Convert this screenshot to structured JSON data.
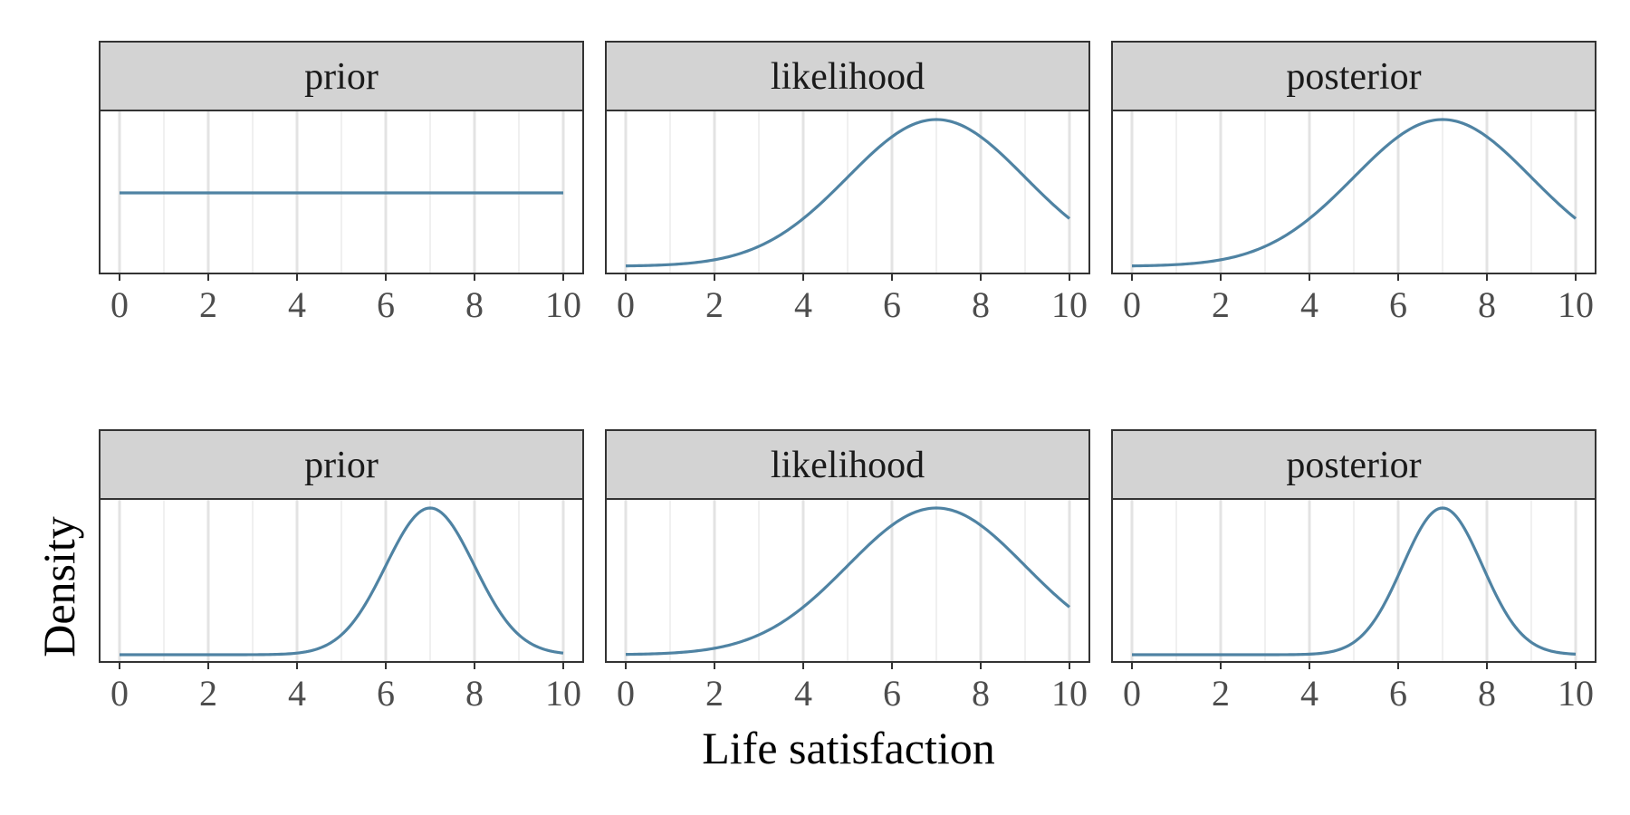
{
  "chart_data": {
    "type": "line",
    "xlabel": "Life satisfaction",
    "ylabel": "Density",
    "xlim": [
      0,
      10
    ],
    "x_ticks": [
      0,
      2,
      4,
      6,
      8,
      10
    ],
    "grid": "vertical",
    "line_color": "#4f83a3",
    "strip_color": "#d3d3d3",
    "rows": [
      {
        "panels": [
          {
            "title": "prior",
            "distribution": "uniform",
            "mean": null,
            "sd": null,
            "relative_height": 0.5
          },
          {
            "title": "likelihood",
            "distribution": "normal",
            "mean": 7,
            "sd": 2,
            "relative_height": 1.0
          },
          {
            "title": "posterior",
            "distribution": "normal",
            "mean": 7,
            "sd": 2,
            "relative_height": 1.0
          }
        ]
      },
      {
        "panels": [
          {
            "title": "prior",
            "distribution": "normal",
            "mean": 7,
            "sd": 1,
            "relative_height": 1.0
          },
          {
            "title": "likelihood",
            "distribution": "normal",
            "mean": 7,
            "sd": 2,
            "relative_height": 1.0
          },
          {
            "title": "posterior",
            "distribution": "normal",
            "mean": 7,
            "sd": 0.9,
            "relative_height": 1.0
          }
        ]
      }
    ]
  }
}
